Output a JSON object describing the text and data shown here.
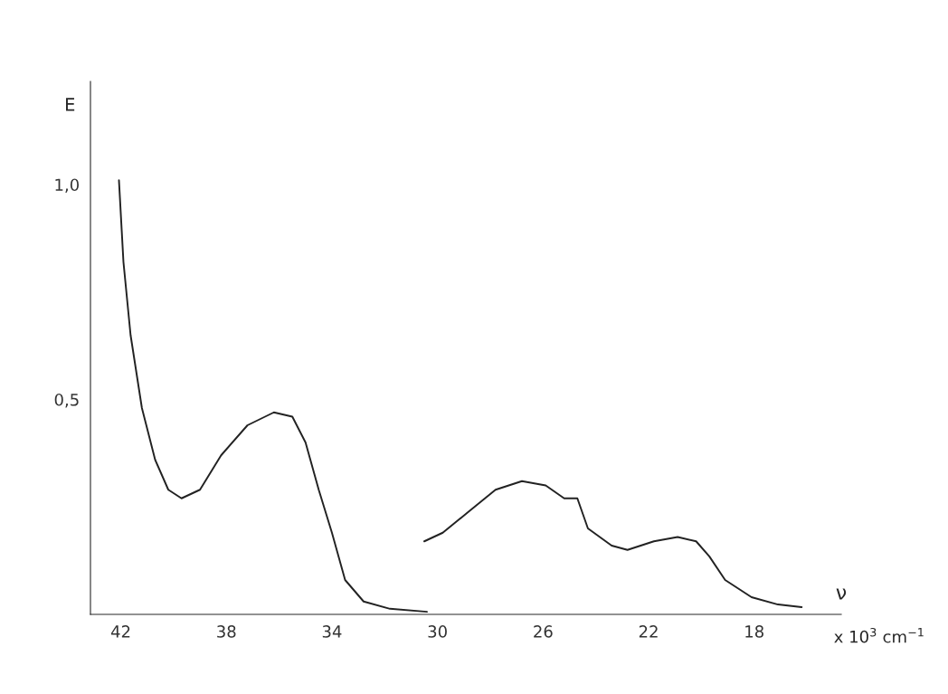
{
  "chart_data": {
    "type": "line",
    "xlabel": "ν",
    "ylabel": "E",
    "annotations": [
      "x 10$^{3}$ cm$^{−1}$"
    ],
    "xlim": [
      43.15,
      14.7
    ],
    "ylim": [
      0,
      1.24
    ],
    "xticks": [
      42,
      38,
      34,
      30,
      26,
      22,
      18
    ],
    "yticks": [
      {
        "value": 0.5,
        "label": "0,5"
      },
      {
        "value": 1.0,
        "label": "1,0"
      }
    ],
    "grid": false,
    "legend": false,
    "marker": "none",
    "line_style": "solid",
    "series": [
      {
        "color": "#222222",
        "x": [
          42.07,
          41.9,
          41.63,
          41.2,
          40.7,
          40.2,
          39.7,
          39.0,
          38.2,
          37.2,
          36.2,
          35.5,
          35.0,
          34.5,
          34.0,
          33.5,
          32.8,
          31.8,
          30.4
        ],
        "values": [
          1.01,
          0.82,
          0.65,
          0.48,
          0.36,
          0.29,
          0.27,
          0.29,
          0.37,
          0.44,
          0.47,
          0.46,
          0.4,
          0.29,
          0.19,
          0.08,
          0.03,
          0.013,
          0.006
        ]
      },
      {
        "color": "#222222",
        "x": [
          30.5,
          29.8,
          28.8,
          27.8,
          26.8,
          25.9,
          25.2,
          24.7,
          24.3,
          23.4,
          22.8,
          21.8,
          20.9,
          20.2,
          19.7,
          19.1,
          18.1,
          17.1,
          16.2
        ],
        "values": [
          0.17,
          0.19,
          0.24,
          0.29,
          0.31,
          0.3,
          0.27,
          0.27,
          0.2,
          0.16,
          0.15,
          0.17,
          0.18,
          0.17,
          0.135,
          0.08,
          0.04,
          0.023,
          0.017
        ]
      }
    ]
  }
}
